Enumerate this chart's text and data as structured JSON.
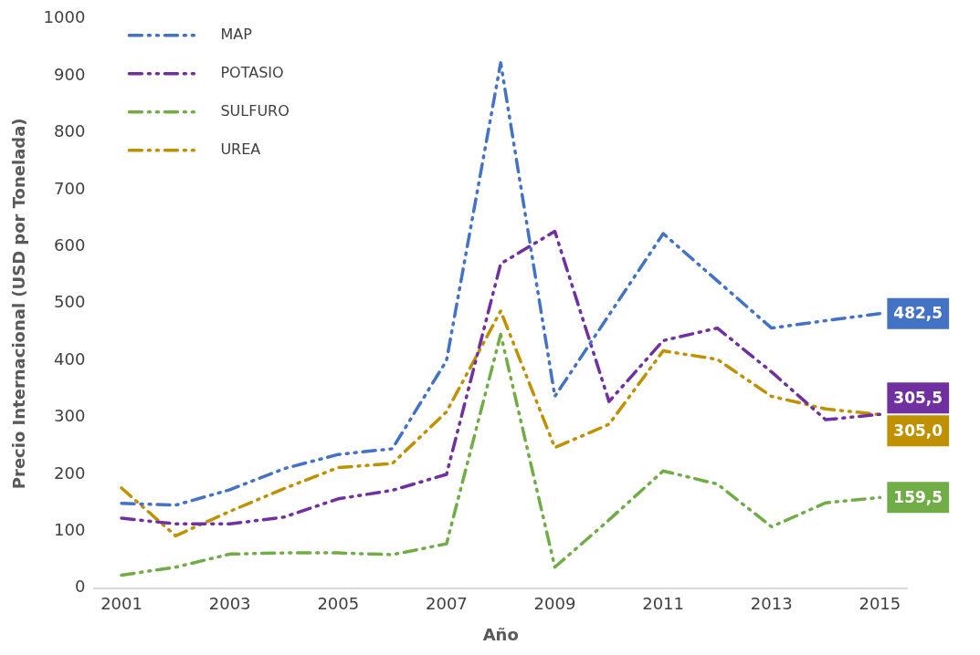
{
  "chart_data": {
    "type": "line",
    "xlabel": "Año",
    "ylabel": "Precio Internacional (USD por Tonelada)",
    "x": [
      2001,
      2002,
      2003,
      2004,
      2005,
      2006,
      2007,
      2008,
      2009,
      2010,
      2011,
      2012,
      2013,
      2014,
      2015
    ],
    "xlim": [
      2000.5,
      2015.5
    ],
    "xticks": [
      2001,
      2003,
      2005,
      2007,
      2009,
      2011,
      2013,
      2015
    ],
    "ylim": [
      0,
      1000
    ],
    "yticks": [
      0,
      100,
      200,
      300,
      400,
      500,
      600,
      700,
      800,
      900,
      1000
    ],
    "grid": false,
    "legend": "top left",
    "marker": "none",
    "line_style": "dashed",
    "series": [
      {
        "name": "MAP",
        "color": "#4472c4",
        "values": [
          149,
          146,
          173,
          210,
          235,
          245,
          400,
          923,
          337,
          480,
          623,
          540,
          457,
          470,
          482.5
        ],
        "value_labels": [
          null,
          null,
          null,
          null,
          null,
          null,
          null,
          null,
          null,
          null,
          null,
          null,
          null,
          null,
          "482,5"
        ]
      },
      {
        "name": "POTASIO",
        "color": "#7030a0",
        "values": [
          123,
          113,
          113,
          125,
          157,
          172,
          200,
          570,
          627,
          328,
          435,
          457,
          380,
          296,
          305.5
        ],
        "value_labels": [
          null,
          null,
          null,
          null,
          null,
          null,
          null,
          null,
          null,
          null,
          null,
          null,
          null,
          null,
          "305,5"
        ]
      },
      {
        "name": "SULFURO",
        "color": "#70ad47",
        "values": [
          23,
          37,
          60,
          62,
          62,
          59,
          78,
          446,
          37,
          120,
          206,
          183,
          108,
          150,
          159.5
        ],
        "value_labels": [
          null,
          null,
          null,
          null,
          null,
          null,
          null,
          null,
          null,
          null,
          null,
          null,
          null,
          null,
          "159,5"
        ]
      },
      {
        "name": "UREA",
        "color": "#bf9000",
        "values": [
          176,
          92,
          135,
          175,
          212,
          219,
          310,
          487,
          247,
          288,
          417,
          402,
          337,
          315,
          305
        ],
        "value_labels": [
          null,
          null,
          null,
          null,
          null,
          null,
          null,
          null,
          null,
          null,
          null,
          null,
          null,
          null,
          "305,0"
        ]
      }
    ]
  }
}
